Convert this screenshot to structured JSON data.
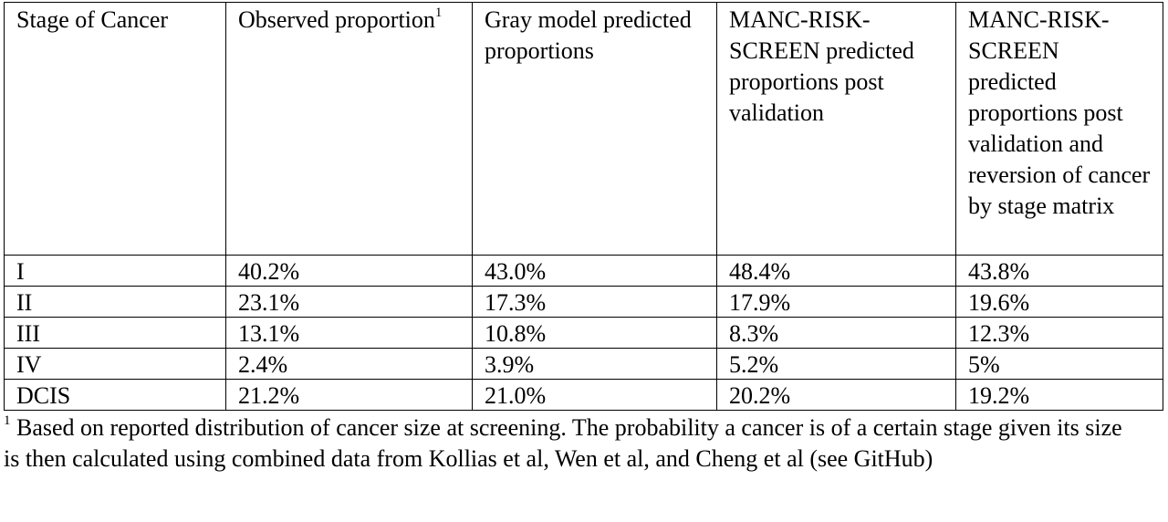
{
  "table": {
    "headers": [
      {
        "text": "Stage of Cancer",
        "sup": ""
      },
      {
        "text": "Observed proportion",
        "sup": "1"
      },
      {
        "text": "Gray model predicted proportions",
        "sup": ""
      },
      {
        "text": "MANC-RISK-SCREEN predicted proportions post validation",
        "sup": ""
      },
      {
        "text": "MANC-RISK-SCREEN predicted proportions post validation and reversion of cancer by stage matrix",
        "sup": ""
      }
    ],
    "rows": [
      [
        "I",
        "40.2%",
        "43.0%",
        "48.4%",
        "43.8%"
      ],
      [
        "II",
        "23.1%",
        "17.3%",
        "17.9%",
        "19.6%"
      ],
      [
        "III",
        "13.1%",
        "10.8%",
        "8.3%",
        "12.3%"
      ],
      [
        "IV",
        "2.4%",
        "3.9%",
        "5.2%",
        "5%"
      ],
      [
        "DCIS",
        "21.2%",
        "21.0%",
        "20.2%",
        "19.2%"
      ]
    ]
  },
  "footnote": {
    "marker": "1",
    "text": " Based on reported distribution of cancer size at screening. The probability a cancer is of a certain stage given its size is then calculated using combined data from Kollias et al, Wen et al, and Cheng et al (see GitHub)"
  }
}
